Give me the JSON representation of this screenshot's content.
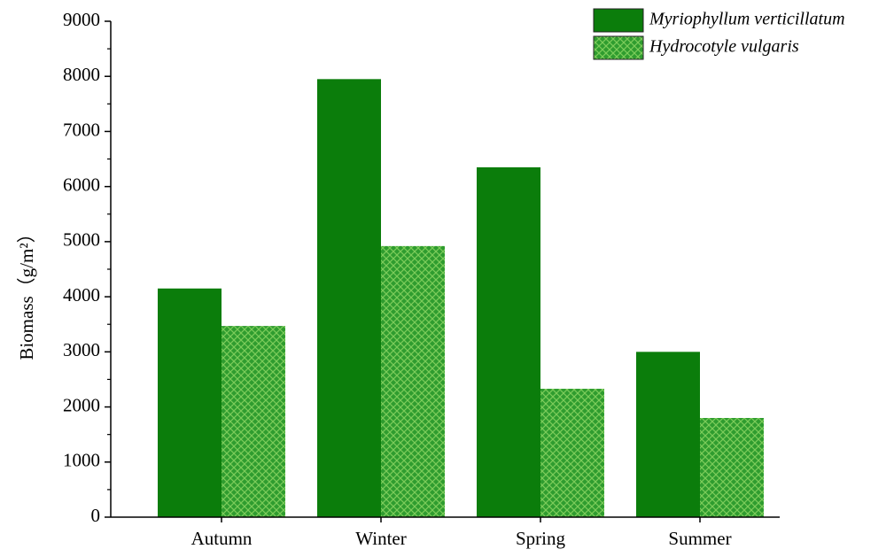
{
  "chart_data": {
    "type": "bar",
    "y_label": "Biomass（g/m²）",
    "categories": [
      "Autumn",
      "Winter",
      "Spring",
      "Summer"
    ],
    "series": [
      {
        "name": "Myriophyllum verticillatum",
        "color": "#0b7d0b",
        "values": [
          4150,
          7950,
          6350,
          3000
        ]
      },
      {
        "name": "Hydrocotyle vulgaris",
        "color": "#2f9c2f",
        "pattern": "crosshatch",
        "values": [
          3470,
          4920,
          2330,
          1800
        ]
      }
    ],
    "ylim": [
      0,
      9000
    ],
    "yticks": [
      0,
      1000,
      2000,
      3000,
      4000,
      5000,
      6000,
      7000,
      8000,
      9000
    ],
    "grid": false,
    "legend": "upper right"
  }
}
